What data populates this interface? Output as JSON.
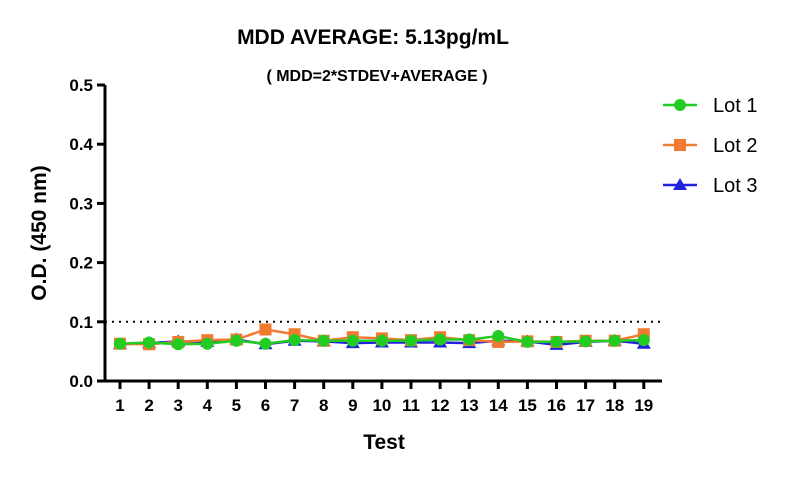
{
  "chart_data": {
    "type": "line",
    "title": "MDD AVERAGE:  5.13pg/mL",
    "subtitle": "( MDD=2*STDEV+AVERAGE )",
    "xlabel": "Test",
    "ylabel": "O.D. (450 nm)",
    "categories": [
      "1",
      "2",
      "3",
      "4",
      "5",
      "6",
      "7",
      "8",
      "9",
      "10",
      "11",
      "12",
      "13",
      "14",
      "15",
      "16",
      "17",
      "18",
      "19"
    ],
    "ylim": [
      0,
      0.5
    ],
    "yticks": [
      "0.0",
      "0.1",
      "0.2",
      "0.3",
      "0.4",
      "0.5"
    ],
    "reference_line": {
      "y": 0.1,
      "style": "dotted",
      "color": "#000000"
    },
    "legend_position": "right",
    "grid": false,
    "series": [
      {
        "name": "Lot 1",
        "marker": "circle",
        "color": "#22CC22",
        "values": [
          0.063,
          0.065,
          0.062,
          0.063,
          0.068,
          0.063,
          0.069,
          0.068,
          0.068,
          0.068,
          0.068,
          0.07,
          0.07,
          0.076,
          0.066,
          0.066,
          0.067,
          0.068,
          0.069
        ]
      },
      {
        "name": "Lot 2",
        "marker": "square",
        "color": "#F07A30",
        "values": [
          0.063,
          0.062,
          0.066,
          0.069,
          0.07,
          0.087,
          0.079,
          0.068,
          0.074,
          0.072,
          0.069,
          0.074,
          0.069,
          0.066,
          0.067,
          0.066,
          0.068,
          0.068,
          0.079
        ]
      },
      {
        "name": "Lot 3",
        "marker": "triangle",
        "color": "#2222DD",
        "values": [
          0.062,
          0.064,
          0.067,
          0.066,
          0.07,
          0.062,
          0.068,
          0.067,
          0.064,
          0.065,
          0.065,
          0.065,
          0.064,
          0.068,
          0.067,
          0.061,
          0.066,
          0.068,
          0.063
        ]
      }
    ]
  }
}
